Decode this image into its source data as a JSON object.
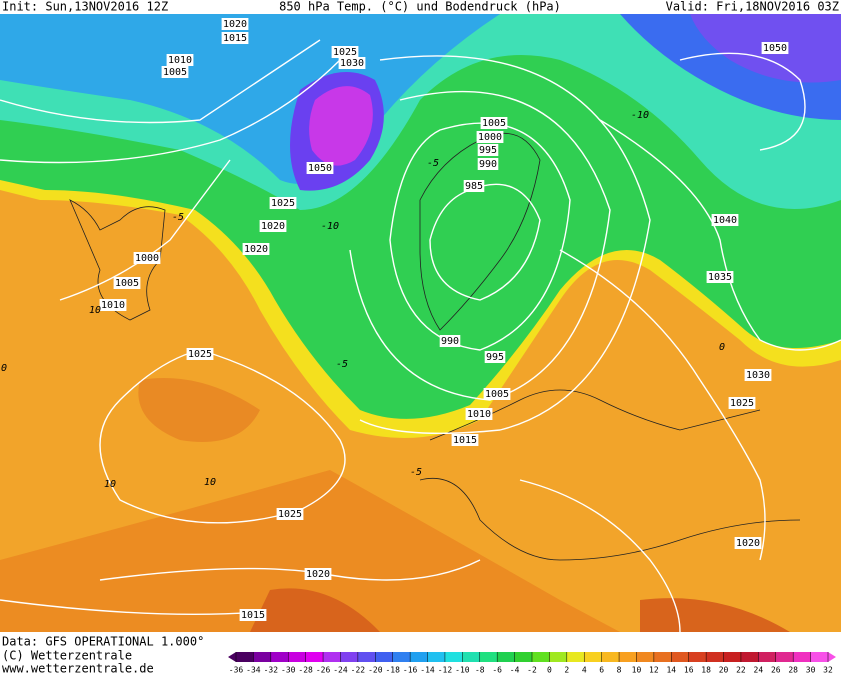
{
  "header": {
    "init": "Init: Sun,13NOV2016 12Z",
    "title": "850 hPa Temp. (°C) und Bodendruck (hPa)",
    "valid": "Valid: Fri,18NOV2016 03Z"
  },
  "map": {
    "pressure_labels": [
      "1020",
      "1015",
      "1010",
      "1005",
      "1025",
      "1030",
      "1050",
      "1025",
      "1020",
      "1020",
      "1000",
      "1005",
      "1010",
      "1025",
      "1005",
      "1000",
      "995",
      "990",
      "985",
      "1040",
      "1035",
      "1050",
      "990",
      "995",
      "1005",
      "1010",
      "1015",
      "1030",
      "1025",
      "1025",
      "1020",
      "1015",
      "1020"
    ],
    "temperature_labels": [
      "-10",
      "-5",
      "-5",
      "-5",
      "10",
      "10",
      "10",
      "0",
      "-10",
      "0",
      "-5"
    ]
  },
  "footer": {
    "data": "Data: GFS OPERATIONAL 1.000°",
    "copyright": "(C) Wetterzentrale",
    "url": "www.wetterzentrale.de"
  },
  "colorbar": {
    "labels": [
      -36,
      -34,
      -32,
      -30,
      -28,
      -26,
      -24,
      -22,
      -20,
      -18,
      -16,
      -14,
      -12,
      -10,
      -8,
      -6,
      -4,
      -2,
      0,
      2,
      4,
      6,
      8,
      10,
      12,
      14,
      16,
      18,
      20,
      22,
      24,
      26,
      28,
      30,
      32
    ]
  }
}
